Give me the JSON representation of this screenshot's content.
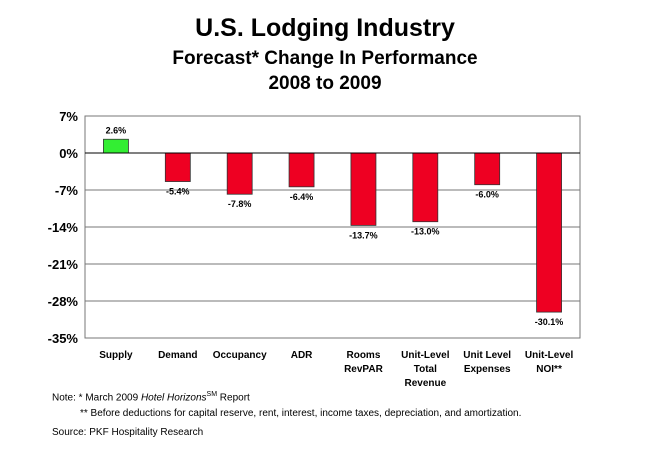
{
  "chart_data": {
    "type": "bar",
    "title": "U.S. Lodging Industry",
    "subtitle": [
      "Forecast* Change In Performance",
      "2008 to 2009"
    ],
    "categories": [
      [
        "Supply"
      ],
      [
        "Demand"
      ],
      [
        "Occupancy"
      ],
      [
        "ADR"
      ],
      [
        "Rooms",
        "RevPAR"
      ],
      [
        "Unit-Level",
        "Total",
        "Revenue"
      ],
      [
        "Unit Level",
        "Expenses"
      ],
      [
        "Unit-Level",
        "NOI**"
      ]
    ],
    "values": [
      2.6,
      -5.4,
      -7.8,
      -6.4,
      -13.7,
      -13.0,
      -6.0,
      -30.1
    ],
    "data_labels": [
      "2.6%",
      "-5.4%",
      "-7.8%",
      "-6.4%",
      "-13.7%",
      "-13.0%",
      "-6.0%",
      "-30.1%"
    ],
    "yticks": [
      7,
      0,
      -7,
      -14,
      -21,
      -28,
      -35
    ],
    "ytick_labels": [
      "7%",
      "0%",
      "-7%",
      "-14%",
      "-21%",
      "-28%",
      "-35%"
    ],
    "ylim": [
      -35,
      7
    ],
    "grid": true,
    "colors": {
      "positive": "#33ee33",
      "negative": "#ee0022"
    }
  },
  "notes": {
    "note_prefix": "Note: * March  2009 ",
    "note_italic": "Hotel Horizons",
    "note_sup": "SM",
    "note_suffix": " Report",
    "footnote": "** Before deductions for capital reserve, rent, interest, income taxes, depreciation, and amortization.",
    "source": "Source: PKF Hospitality Research"
  }
}
